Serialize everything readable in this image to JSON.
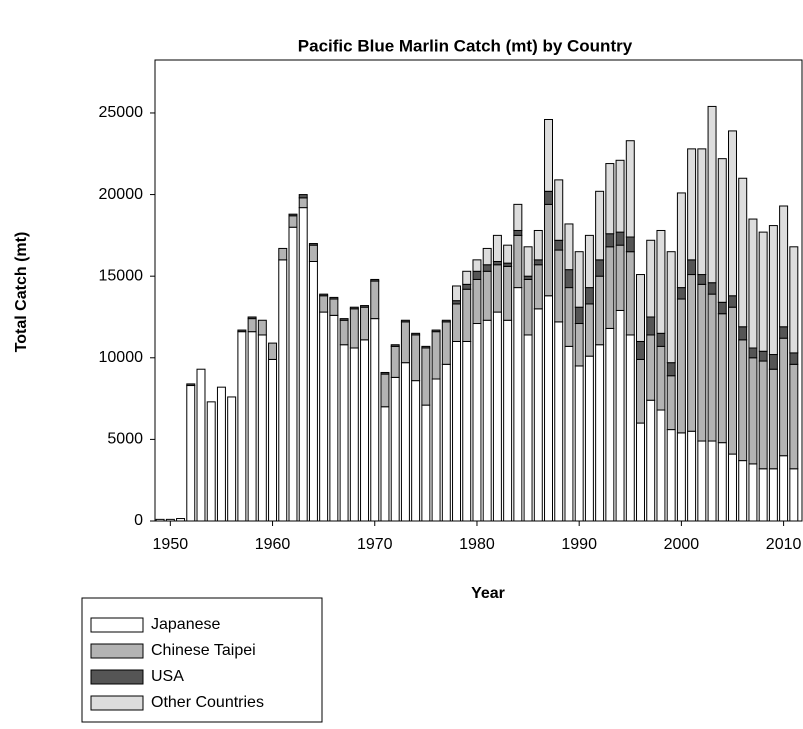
{
  "chart_data": {
    "type": "stacked-bar",
    "title": "Pacific Blue Marlin Catch (mt) by Country",
    "x_label": "Year",
    "y_label": "Total Catch (mt)",
    "x": [
      1949,
      1950,
      1951,
      1952,
      1953,
      1954,
      1955,
      1956,
      1957,
      1958,
      1959,
      1960,
      1961,
      1962,
      1963,
      1964,
      1965,
      1966,
      1967,
      1968,
      1969,
      1970,
      1971,
      1972,
      1973,
      1974,
      1975,
      1976,
      1977,
      1978,
      1979,
      1980,
      1981,
      1982,
      1983,
      1984,
      1985,
      1986,
      1987,
      1988,
      1989,
      1990,
      1991,
      1992,
      1993,
      1994,
      1995,
      1996,
      1997,
      1998,
      1999,
      2000,
      2001,
      2002,
      2003,
      2004,
      2005,
      2006,
      2007,
      2008,
      2009,
      2010,
      2011
    ],
    "series": [
      {
        "name": "Japanese",
        "color": "#ffffff",
        "values": [
          100,
          100,
          150,
          8300,
          9300,
          7300,
          8200,
          7600,
          11600,
          11600,
          11400,
          9900,
          16000,
          18000,
          19200,
          15900,
          12800,
          12600,
          10800,
          10600,
          11100,
          12400,
          7000,
          8800,
          9700,
          8600,
          7100,
          8700,
          9600,
          11000,
          11000,
          12100,
          12300,
          12800,
          12300,
          14300,
          11400,
          13000,
          13800,
          12200,
          10700,
          9500,
          10100,
          10800,
          11800,
          12900,
          11400,
          6000,
          7400,
          6800,
          5600,
          5400,
          5500,
          4900,
          4900,
          4800,
          4100,
          3700,
          3500,
          3200,
          3200,
          4000,
          3200
        ]
      },
      {
        "name": "Chinese Taipei",
        "color": "#b3b3b3",
        "values": [
          0,
          0,
          0,
          0,
          0,
          0,
          0,
          0,
          0,
          800,
          900,
          1000,
          700,
          700,
          600,
          1000,
          1000,
          1000,
          1500,
          2400,
          2000,
          2300,
          2000,
          1900,
          2500,
          2800,
          3500,
          2900,
          2600,
          2300,
          3200,
          2700,
          3000,
          2900,
          3300,
          3200,
          3400,
          2700,
          5600,
          4400,
          3600,
          2600,
          3200,
          4200,
          5000,
          4000,
          5100,
          3900,
          4000,
          3900,
          3300,
          8200,
          9600,
          9600,
          9000,
          7900,
          9000,
          7400,
          6500,
          6600,
          6100,
          7200,
          6400
        ]
      },
      {
        "name": "USA",
        "color": "#555555",
        "values": [
          0,
          0,
          0,
          100,
          0,
          0,
          0,
          0,
          100,
          100,
          0,
          0,
          0,
          100,
          200,
          100,
          100,
          100,
          100,
          100,
          100,
          100,
          100,
          100,
          100,
          100,
          100,
          100,
          100,
          200,
          300,
          500,
          400,
          200,
          200,
          300,
          200,
          300,
          800,
          600,
          1100,
          1000,
          1000,
          1000,
          800,
          800,
          900,
          1100,
          1100,
          800,
          800,
          700,
          900,
          600,
          700,
          700,
          700,
          800,
          600,
          600,
          900,
          700,
          700
        ]
      },
      {
        "name": "Other Countries",
        "color": "#dddddd",
        "values": [
          0,
          0,
          0,
          0,
          0,
          0,
          0,
          0,
          0,
          0,
          0,
          0,
          0,
          0,
          0,
          0,
          0,
          0,
          0,
          0,
          0,
          0,
          0,
          0,
          0,
          0,
          0,
          0,
          0,
          900,
          800,
          700,
          1000,
          1600,
          1100,
          1600,
          1800,
          1800,
          4400,
          3700,
          2800,
          3400,
          3200,
          4200,
          4300,
          4400,
          5900,
          4100,
          4700,
          6300,
          6800,
          5800,
          6800,
          7700,
          10800,
          8800,
          10100,
          9100,
          7900,
          7300,
          7900,
          7400,
          6500
        ]
      }
    ],
    "xlim": [
      1948.5,
      2011.8
    ],
    "xticks": [
      1950,
      1960,
      1970,
      1980,
      1990,
      2000,
      2010
    ],
    "ylim": [
      0,
      28000
    ],
    "yticks": [
      0,
      5000,
      10000,
      15000,
      20000,
      25000
    ]
  }
}
